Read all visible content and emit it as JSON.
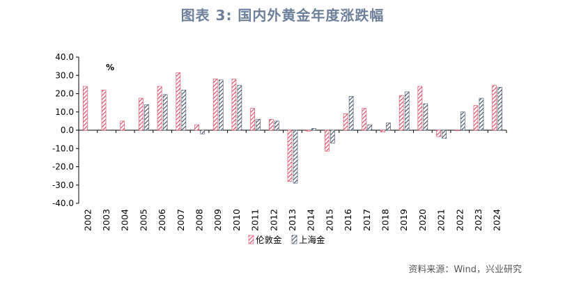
{
  "header": {
    "title": "图表 3:  国内外黄金年度涨跌幅"
  },
  "footer": {
    "source": "资料来源：Wind，兴业研究"
  },
  "chart_data": {
    "type": "bar",
    "unit_label": "%",
    "categories": [
      "2002",
      "2003",
      "2004",
      "2005",
      "2006",
      "2007",
      "2008",
      "2009",
      "2010",
      "2011",
      "2012",
      "2013",
      "2014",
      "2015",
      "2016",
      "2017",
      "2018",
      "2019",
      "2020",
      "2021",
      "2022",
      "2023",
      "2024"
    ],
    "series": [
      {
        "name": "伦敦金",
        "color": "#e0405a",
        "values": [
          24,
          22,
          5,
          17.5,
          24,
          31.5,
          3,
          28,
          28,
          12,
          6,
          -28,
          -0.5,
          -11.5,
          9,
          12,
          -1,
          19,
          24,
          -3.5,
          0,
          13.5,
          24.5
        ]
      },
      {
        "name": "上海金",
        "color": "#3b4a63",
        "values": [
          null,
          null,
          null,
          14,
          19.5,
          22,
          -2,
          27.5,
          24.5,
          6,
          5,
          -29,
          1,
          -7,
          18.5,
          3,
          4,
          21,
          14.5,
          -4.5,
          10,
          17.5,
          23.5
        ]
      }
    ],
    "ylim": [
      -40,
      40
    ],
    "yticks": [
      "40.0",
      "30.0",
      "20.0",
      "10.0",
      "0.0",
      "-10.0",
      "-20.0",
      "-30.0",
      "-40.0"
    ],
    "grid": false,
    "legend": "bottom-center"
  }
}
